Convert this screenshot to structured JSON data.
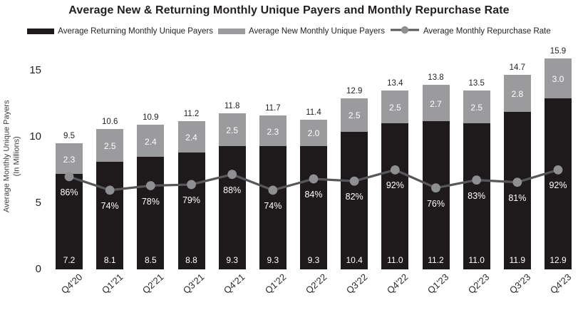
{
  "title": "Average New & Returning Monthly Unique Payers and Monthly Repurchase Rate",
  "legend": {
    "items": [
      {
        "label": "Average Returning Monthly Unique Payers",
        "swatch": "bar-black"
      },
      {
        "label": "Average New Monthly Unique Payers",
        "swatch": "bar-gray"
      },
      {
        "label": "Average Monthly Repurchase Rate",
        "swatch": "line-marker"
      }
    ]
  },
  "y_axis": {
    "title_lines": [
      "Average Monthly Unique Payers",
      "(In Millions)"
    ],
    "ticks": [
      0,
      5,
      10,
      15
    ],
    "range": [
      0,
      15
    ]
  },
  "colors": {
    "returning_bar": "#1e1a1c",
    "new_bar": "#9b9b9d",
    "rate_line": "#57565a",
    "rate_marker": "#8e8f91",
    "text": "#231f20",
    "label_on_bar": "#ffffff"
  },
  "chart_data": {
    "type": "bar",
    "subtype": "stacked-bar-with-line-overlay",
    "title": "Average New & Returning Monthly Unique Payers and Monthly Repurchase Rate",
    "xlabel": "",
    "ylabel": "Average Monthly Unique Payers (In Millions)",
    "ylim": [
      0,
      15
    ],
    "grid": false,
    "legend_position": "top",
    "categories": [
      "Q4'20",
      "Q1'21",
      "Q2'21",
      "Q3'21",
      "Q4'21",
      "Q1'22",
      "Q2'22",
      "Q3'22",
      "Q4'22",
      "Q1'23",
      "Q2'23",
      "Q3'23",
      "Q4'23"
    ],
    "series": [
      {
        "name": "Average Returning Monthly Unique Payers",
        "render": "bar",
        "values": [
          7.2,
          8.1,
          8.5,
          8.8,
          9.3,
          9.3,
          9.3,
          10.4,
          11.0,
          11.2,
          11.0,
          11.9,
          12.9
        ]
      },
      {
        "name": "Average New Monthly Unique Payers",
        "render": "bar",
        "values": [
          2.3,
          2.5,
          2.4,
          2.4,
          2.5,
          2.3,
          2.0,
          2.5,
          2.5,
          2.7,
          2.5,
          2.8,
          3.0
        ]
      },
      {
        "name": "Average Monthly Repurchase Rate",
        "render": "line",
        "unit": "%",
        "values": [
          86,
          74,
          78,
          79,
          88,
          74,
          84,
          82,
          92,
          76,
          83,
          81,
          92
        ]
      }
    ],
    "total_labels": [
      9.5,
      10.6,
      10.9,
      11.2,
      11.8,
      11.7,
      11.4,
      12.9,
      13.4,
      13.8,
      13.5,
      14.7,
      15.9
    ]
  }
}
